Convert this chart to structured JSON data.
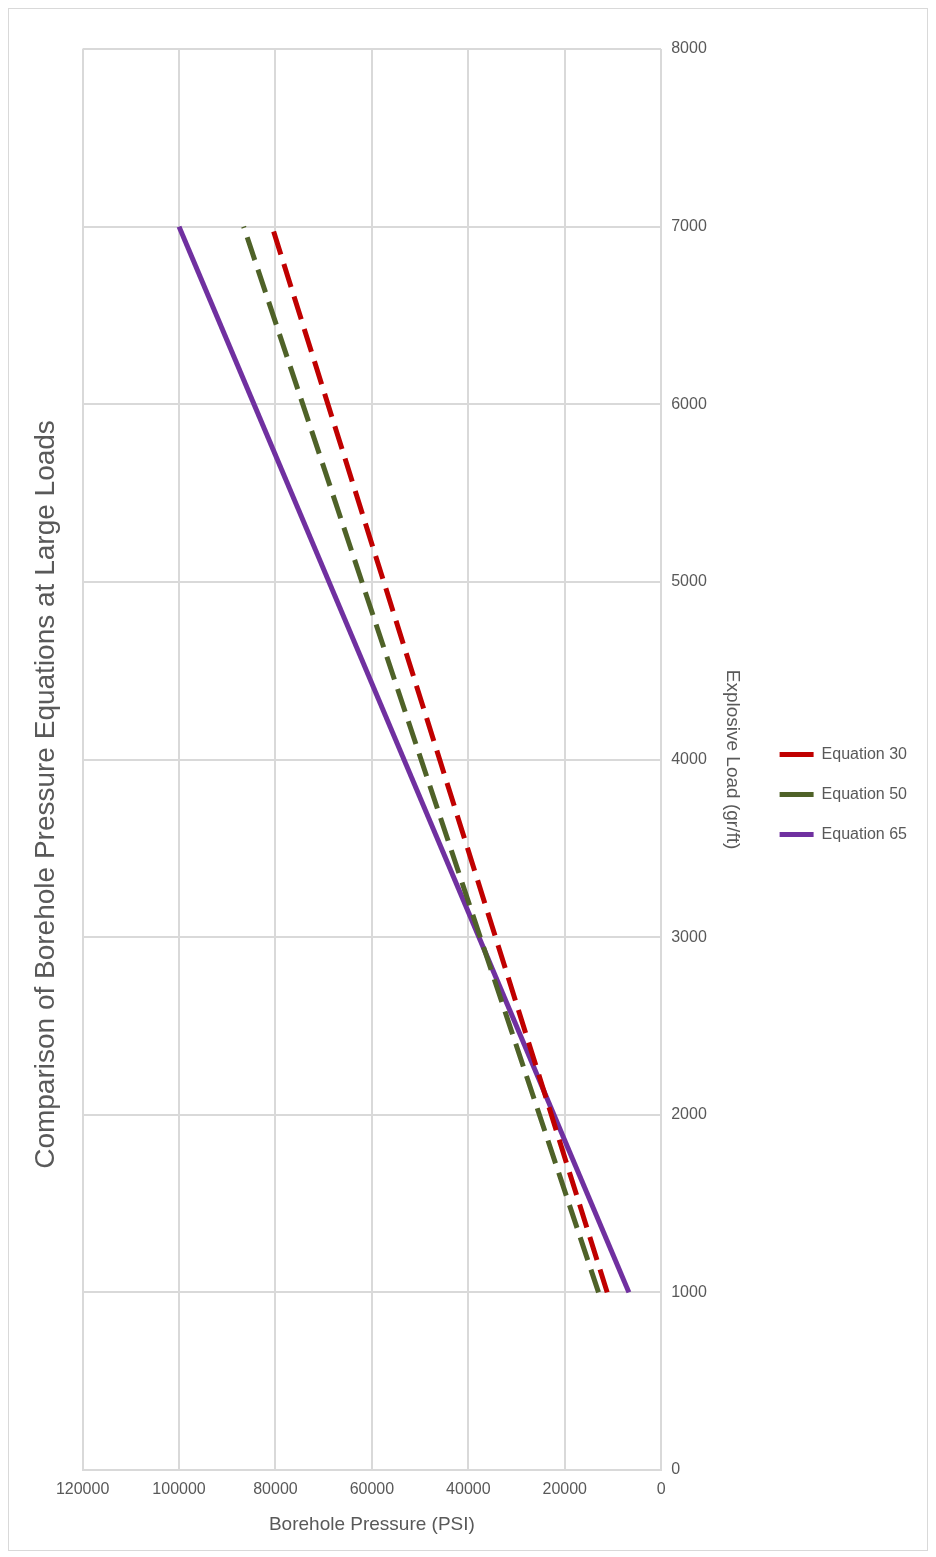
{
  "chart_data": {
    "type": "line",
    "title": "Comparison of Borehole Pressure Equations at Large Loads",
    "xlabel": "Borehole Pressure (PSI)",
    "ylabel": "Explosive Load (gr/ft)",
    "xlim": [
      120000,
      0
    ],
    "xticks": [
      0,
      20000,
      40000,
      60000,
      80000,
      100000,
      120000
    ],
    "ylim": [
      0,
      8000
    ],
    "yticks": [
      0,
      1000,
      2000,
      3000,
      4000,
      5000,
      6000,
      7000,
      8000
    ],
    "grid": true,
    "legend": "right",
    "marker": "none",
    "series": [
      {
        "name": "Equation 30",
        "color": "#c00000",
        "line_style": "dashed",
        "x": [
          11200,
          80700
        ],
        "values": [
          1000,
          7000
        ]
      },
      {
        "name": "Equation 50",
        "color": "#4f6228",
        "line_style": "dashed",
        "x": [
          13000,
          86600
        ],
        "values": [
          1000,
          7000
        ]
      },
      {
        "name": "Equation 65",
        "color": "#7030a0",
        "line_style": "solid",
        "x": [
          6700,
          100000
        ],
        "values": [
          1000,
          7000
        ]
      }
    ]
  }
}
